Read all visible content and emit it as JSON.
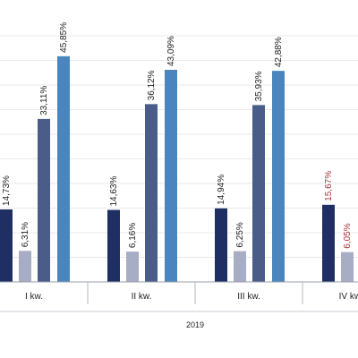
{
  "chart_data": {
    "type": "bar",
    "group_label": "2019",
    "categories": [
      "I kw.",
      "II kw.",
      "III kw.",
      "IV kw."
    ],
    "ylim": [
      0,
      50
    ],
    "grid": true,
    "series": [
      {
        "values": [
          14.73,
          14.63,
          14.94,
          15.67
        ],
        "labels": [
          "14,73%",
          "14,63%",
          "14,94%",
          "15,67%"
        ],
        "color": "#1f2f63",
        "label_colors": [
          "#222222",
          "#222222",
          "#222222",
          "#a4343a"
        ]
      },
      {
        "values": [
          6.31,
          6.16,
          6.25,
          6.05
        ],
        "labels": [
          "6,31%",
          "6,16%",
          "6,25%",
          "6,05%"
        ],
        "color": "#a7adc4",
        "label_colors": [
          "#222222",
          "#222222",
          "#222222",
          "#a4343a"
        ]
      },
      {
        "values": [
          33.11,
          36.12,
          35.93,
          null
        ],
        "labels": [
          "33,11%",
          "36,12%",
          "35,93%",
          ""
        ],
        "color": "#4a5c88",
        "label_colors": [
          "#222222",
          "#222222",
          "#222222",
          "#222222"
        ]
      },
      {
        "values": [
          45.85,
          43.09,
          42.88,
          null
        ],
        "labels": [
          "45,85%",
          "43,09%",
          "42,88%",
          ""
        ],
        "color": "#4a86bd",
        "label_colors": [
          "#222222",
          "#222222",
          "#222222",
          "#222222"
        ]
      }
    ]
  }
}
